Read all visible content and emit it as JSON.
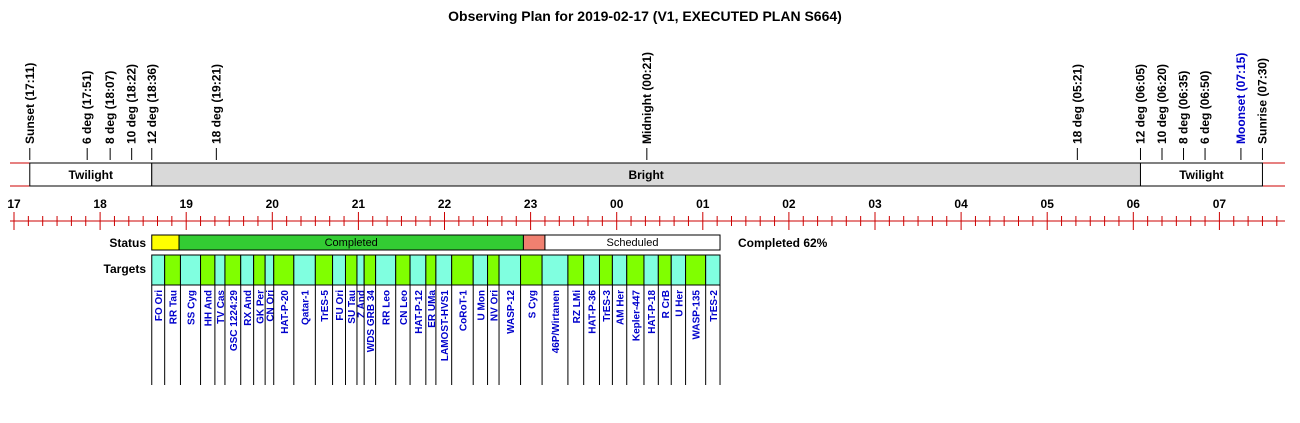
{
  "title": "Observing Plan for 2019-02-17 (V1, EXECUTED PLAN S664)",
  "colors": {
    "red": "#cc0000",
    "grey": "#d9d9d9",
    "yellow": "#ffff00",
    "green": "#33cc33",
    "salmon": "#f08070",
    "cyan": "#80ffe0",
    "lime": "#80ff00",
    "blue": "#0000cc",
    "black": "#000000"
  },
  "events": [
    {
      "label": "Sunset (17:11)",
      "time": "17:11",
      "color": "black"
    },
    {
      "label": "6 deg (17:51)",
      "time": "17:51",
      "color": "black"
    },
    {
      "label": "8 deg (18:07)",
      "time": "18:07",
      "color": "black"
    },
    {
      "label": "10 deg (18:22)",
      "time": "18:22",
      "color": "black"
    },
    {
      "label": "12 deg (18:36)",
      "time": "18:36",
      "color": "black"
    },
    {
      "label": "18 deg (19:21)",
      "time": "19:21",
      "color": "black"
    },
    {
      "label": "Midnight (00:21)",
      "time": "00:21",
      "color": "black"
    },
    {
      "label": "18 deg (05:21)",
      "time": "05:21",
      "color": "black"
    },
    {
      "label": "12 deg (06:05)",
      "time": "06:05",
      "color": "black"
    },
    {
      "label": "10 deg (06:20)",
      "time": "06:20",
      "color": "black"
    },
    {
      "label": "8 deg (06:35)",
      "time": "06:35",
      "color": "black"
    },
    {
      "label": "6 deg (06:50)",
      "time": "06:50",
      "color": "black"
    },
    {
      "label": "Moonset (07:15)",
      "time": "07:15",
      "color": "blue"
    },
    {
      "label": "Sunrise (07:30)",
      "time": "07:30",
      "color": "black"
    }
  ],
  "bands": [
    {
      "label": "Twilight",
      "start": "17:11",
      "end": "18:36",
      "fill": "white"
    },
    {
      "label": "Bright",
      "start": "18:36",
      "end": "06:05",
      "fill": "grey"
    },
    {
      "label": "Twilight",
      "start": "06:05",
      "end": "07:30",
      "fill": "white"
    }
  ],
  "hours": [
    "17",
    "18",
    "19",
    "20",
    "21",
    "22",
    "23",
    "00",
    "01",
    "02",
    "03",
    "04",
    "05",
    "06",
    "07"
  ],
  "status": {
    "row_label": "Status",
    "summary": "Completed 62%",
    "segments": [
      {
        "label": "",
        "start": "18:36",
        "end": "18:55",
        "color": "yellow"
      },
      {
        "label": "Completed",
        "start": "18:55",
        "end": "22:55",
        "color": "green"
      },
      {
        "label": "",
        "start": "22:55",
        "end": "23:10",
        "color": "salmon"
      },
      {
        "label": "Scheduled",
        "start": "23:10",
        "end": "01:12",
        "color": "white"
      }
    ]
  },
  "targets": {
    "row_label": "Targets",
    "items": [
      {
        "name": "FO Ori",
        "start": "18:36",
        "end": "18:45",
        "color": "cyan"
      },
      {
        "name": "RR Tau",
        "start": "18:45",
        "end": "18:56",
        "color": "lime"
      },
      {
        "name": "SS Cyg",
        "start": "18:56",
        "end": "19:10",
        "color": "cyan"
      },
      {
        "name": "HH And",
        "start": "19:10",
        "end": "19:20",
        "color": "lime"
      },
      {
        "name": "TV Cas",
        "start": "19:20",
        "end": "19:27",
        "color": "cyan"
      },
      {
        "name": "GSC 1224:29",
        "start": "19:27",
        "end": "19:38",
        "color": "lime"
      },
      {
        "name": "RX And",
        "start": "19:38",
        "end": "19:47",
        "color": "cyan"
      },
      {
        "name": "GK Per",
        "start": "19:47",
        "end": "19:55",
        "color": "lime"
      },
      {
        "name": "CN Ori",
        "start": "19:55",
        "end": "20:01",
        "color": "cyan"
      },
      {
        "name": "HAT-P-20",
        "start": "20:01",
        "end": "20:15",
        "color": "lime"
      },
      {
        "name": "Qatar-1",
        "start": "20:15",
        "end": "20:30",
        "color": "cyan"
      },
      {
        "name": "TrES-5",
        "start": "20:30",
        "end": "20:42",
        "color": "lime"
      },
      {
        "name": "FU Ori",
        "start": "20:42",
        "end": "20:51",
        "color": "cyan"
      },
      {
        "name": "SU Tau",
        "start": "20:51",
        "end": "20:59",
        "color": "lime"
      },
      {
        "name": "Z And",
        "start": "20:59",
        "end": "21:04",
        "color": "cyan"
      },
      {
        "name": "WDS GRB 34",
        "start": "21:04",
        "end": "21:12",
        "color": "lime"
      },
      {
        "name": "RR Leo",
        "start": "21:12",
        "end": "21:26",
        "color": "cyan"
      },
      {
        "name": "CN Leo",
        "start": "21:26",
        "end": "21:36",
        "color": "lime"
      },
      {
        "name": "HAT-P-12",
        "start": "21:36",
        "end": "21:47",
        "color": "cyan"
      },
      {
        "name": "ER UMa",
        "start": "21:47",
        "end": "21:54",
        "color": "lime"
      },
      {
        "name": "LAMOST-HVS1",
        "start": "21:54",
        "end": "22:05",
        "color": "cyan"
      },
      {
        "name": "CoRoT-1",
        "start": "22:05",
        "end": "22:20",
        "color": "lime"
      },
      {
        "name": "U Mon",
        "start": "22:20",
        "end": "22:30",
        "color": "cyan"
      },
      {
        "name": "NV Ori",
        "start": "22:30",
        "end": "22:38",
        "color": "lime"
      },
      {
        "name": "WASP-12",
        "start": "22:38",
        "end": "22:53",
        "color": "cyan"
      },
      {
        "name": "S Cyg",
        "start": "22:53",
        "end": "23:08",
        "color": "lime"
      },
      {
        "name": "46P/Wirtanen",
        "start": "23:08",
        "end": "23:26",
        "color": "cyan"
      },
      {
        "name": "RZ LMi",
        "start": "23:26",
        "end": "23:37",
        "color": "lime"
      },
      {
        "name": "HAT-P-36",
        "start": "23:37",
        "end": "23:48",
        "color": "cyan"
      },
      {
        "name": "TrES-3",
        "start": "23:48",
        "end": "23:57",
        "color": "lime"
      },
      {
        "name": "AM Her",
        "start": "23:57",
        "end": "00:07",
        "color": "cyan"
      },
      {
        "name": "Kepler-447",
        "start": "00:07",
        "end": "00:19",
        "color": "lime"
      },
      {
        "name": "HAT-P-18",
        "start": "00:19",
        "end": "00:29",
        "color": "cyan"
      },
      {
        "name": "R CrB",
        "start": "00:29",
        "end": "00:38",
        "color": "lime"
      },
      {
        "name": "U Her",
        "start": "00:38",
        "end": "00:48",
        "color": "cyan"
      },
      {
        "name": "WASP-135",
        "start": "00:48",
        "end": "01:02",
        "color": "lime"
      },
      {
        "name": "TrES-2",
        "start": "01:02",
        "end": "01:12",
        "color": "cyan"
      }
    ]
  }
}
